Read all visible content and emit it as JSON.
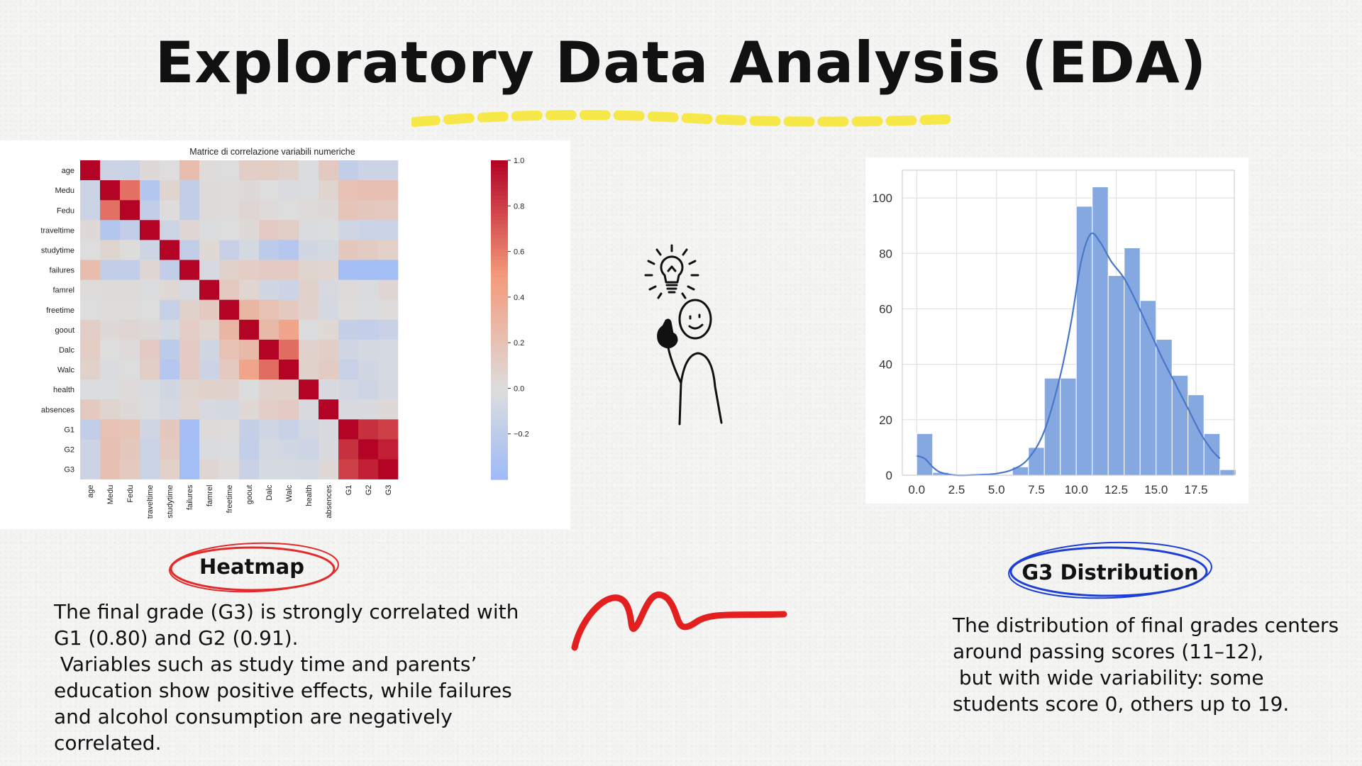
{
  "slide": {
    "title": "Exploratory Data Analysis (EDA)",
    "accent_yellow": "#f7e84a",
    "heatmap_label": "Heatmap",
    "heatmap_label_color": "#e32b2b",
    "g3_label": "G3 Distribution",
    "g3_label_color": "#1d3fd6",
    "heatmap_description": "The final grade (G3) is strongly correlated with G1 (0.80) and G2 (0.91).\n Variables such as study time and parents’ education show positive effects, while failures and alcohol consumption are negatively correlated.",
    "g3_description": "The distribution of final grades centers around passing scores (11–12),\n but with wide variability: some students score 0, others up to 19.",
    "doodle_icon": "person-idea-lightbulb-icon",
    "squiggle_icon": "red-squiggle-decoration-icon"
  },
  "chart_data": [
    {
      "type": "heatmap",
      "title": "Matrice di correlazione variabili numeriche",
      "variables": [
        "age",
        "Medu",
        "Fedu",
        "traveltime",
        "studytime",
        "failures",
        "famrel",
        "freetime",
        "goout",
        "Dalc",
        "Walc",
        "health",
        "absences",
        "G1",
        "G2",
        "G3"
      ],
      "colormap": "coolwarm",
      "colorbar_ticks": [
        1.0,
        0.8,
        0.6,
        0.4,
        0.2,
        0.0,
        -0.2
      ],
      "colorbar_tick_labels": [
        "1.0",
        "0.8",
        "0.6",
        "0.4",
        "0.2",
        "0.0",
        "−0.2"
      ],
      "colorbar_range": [
        -0.4,
        1.0
      ],
      "matrix": [
        [
          1.0,
          -0.11,
          -0.12,
          0.03,
          0.0,
          0.24,
          0.01,
          0.0,
          0.11,
          0.13,
          0.09,
          -0.01,
          0.15,
          -0.17,
          -0.11,
          -0.11
        ],
        [
          -0.11,
          1.0,
          0.64,
          -0.26,
          0.07,
          -0.17,
          0.02,
          0.01,
          0.03,
          0.0,
          -0.02,
          -0.01,
          0.07,
          0.21,
          0.22,
          0.22
        ],
        [
          -0.12,
          0.64,
          1.0,
          -0.17,
          0.01,
          -0.17,
          0.02,
          0.01,
          0.05,
          0.02,
          -0.0,
          0.02,
          0.03,
          0.19,
          0.16,
          0.15
        ],
        [
          0.03,
          -0.26,
          -0.17,
          1.0,
          -0.1,
          0.05,
          -0.01,
          0.0,
          0.03,
          0.14,
          0.11,
          -0.02,
          -0.01,
          -0.09,
          -0.12,
          -0.12
        ],
        [
          0.0,
          0.07,
          0.01,
          -0.1,
          1.0,
          -0.17,
          0.04,
          -0.14,
          -0.06,
          -0.2,
          -0.25,
          -0.08,
          -0.06,
          0.16,
          0.14,
          0.1
        ],
        [
          0.24,
          -0.17,
          -0.17,
          0.05,
          -0.17,
          1.0,
          -0.04,
          0.09,
          0.12,
          0.14,
          0.14,
          0.07,
          0.06,
          -0.35,
          -0.36,
          -0.36
        ],
        [
          0.01,
          0.02,
          0.02,
          -0.01,
          0.04,
          -0.04,
          1.0,
          0.15,
          0.06,
          -0.08,
          -0.11,
          0.09,
          -0.04,
          0.02,
          -0.02,
          0.05
        ],
        [
          0.0,
          0.01,
          0.01,
          0.0,
          -0.14,
          0.09,
          0.15,
          1.0,
          0.29,
          0.21,
          0.15,
          0.08,
          -0.06,
          0.01,
          -0.01,
          0.01
        ],
        [
          0.11,
          0.03,
          0.05,
          0.03,
          -0.06,
          0.12,
          0.06,
          0.29,
          1.0,
          0.27,
          0.42,
          -0.01,
          0.04,
          -0.15,
          -0.16,
          -0.13
        ],
        [
          0.13,
          0.0,
          0.02,
          0.14,
          -0.2,
          0.14,
          -0.08,
          0.21,
          0.27,
          1.0,
          0.65,
          0.08,
          0.11,
          -0.09,
          -0.06,
          -0.05
        ],
        [
          0.09,
          -0.02,
          -0.0,
          0.11,
          -0.25,
          0.14,
          -0.11,
          0.15,
          0.42,
          0.65,
          1.0,
          0.09,
          0.14,
          -0.13,
          -0.08,
          -0.05
        ],
        [
          -0.01,
          -0.01,
          0.02,
          -0.02,
          -0.08,
          0.07,
          0.09,
          0.08,
          -0.01,
          0.08,
          0.09,
          1.0,
          -0.03,
          -0.07,
          -0.1,
          -0.06
        ],
        [
          0.15,
          0.07,
          0.03,
          -0.01,
          -0.06,
          0.06,
          -0.04,
          -0.06,
          0.04,
          0.11,
          0.14,
          -0.03,
          1.0,
          -0.03,
          -0.03,
          0.03
        ],
        [
          -0.17,
          0.21,
          0.19,
          -0.09,
          0.16,
          -0.35,
          0.02,
          0.01,
          -0.15,
          -0.09,
          -0.13,
          -0.07,
          -0.03,
          1.0,
          0.85,
          0.8
        ],
        [
          -0.11,
          0.22,
          0.16,
          -0.12,
          0.14,
          -0.36,
          -0.02,
          -0.01,
          -0.16,
          -0.06,
          -0.08,
          -0.1,
          -0.03,
          0.85,
          1.0,
          0.91
        ],
        [
          -0.11,
          0.22,
          0.15,
          -0.12,
          0.1,
          -0.36,
          0.05,
          0.01,
          -0.13,
          -0.05,
          -0.05,
          -0.06,
          0.03,
          0.8,
          0.91,
          1.0
        ]
      ]
    },
    {
      "type": "bar",
      "subtype": "histogram with KDE line",
      "bin_edges": [
        0,
        1,
        2,
        3,
        4,
        5,
        6,
        7,
        8,
        9,
        10,
        11,
        12,
        13,
        14,
        15,
        16,
        17,
        18,
        19
      ],
      "counts": [
        15,
        1,
        0,
        0,
        0,
        0,
        3,
        10,
        35,
        35,
        97,
        104,
        72,
        82,
        63,
        49,
        36,
        29,
        15,
        2
      ],
      "kde": [
        [
          0,
          7
        ],
        [
          0.5,
          6
        ],
        [
          1,
          3
        ],
        [
          1.5,
          1
        ],
        [
          2.5,
          0
        ],
        [
          4,
          0.2
        ],
        [
          5,
          0.6
        ],
        [
          6,
          2
        ],
        [
          7,
          6
        ],
        [
          8,
          16
        ],
        [
          9,
          36
        ],
        [
          9.7,
          56
        ],
        [
          10.3,
          77
        ],
        [
          10.9,
          87
        ],
        [
          11.5,
          84
        ],
        [
          12.2,
          77
        ],
        [
          13,
          71
        ],
        [
          13.8,
          62
        ],
        [
          14.6,
          52
        ],
        [
          15.4,
          42
        ],
        [
          16.2,
          33
        ],
        [
          17,
          24
        ],
        [
          17.8,
          15
        ],
        [
          18.5,
          9
        ],
        [
          19,
          6
        ]
      ],
      "xlim": [
        -0.9,
        19.9
      ],
      "ylim": [
        0,
        110
      ],
      "xticks": [
        "0.0",
        "2.5",
        "5.0",
        "7.5",
        "10.0",
        "12.5",
        "15.0",
        "17.5"
      ],
      "yticks": [
        "0",
        "20",
        "40",
        "60",
        "80",
        "100"
      ],
      "bar_color": "#86a8e0",
      "line_color": "#4a76c9",
      "grid": true
    }
  ]
}
